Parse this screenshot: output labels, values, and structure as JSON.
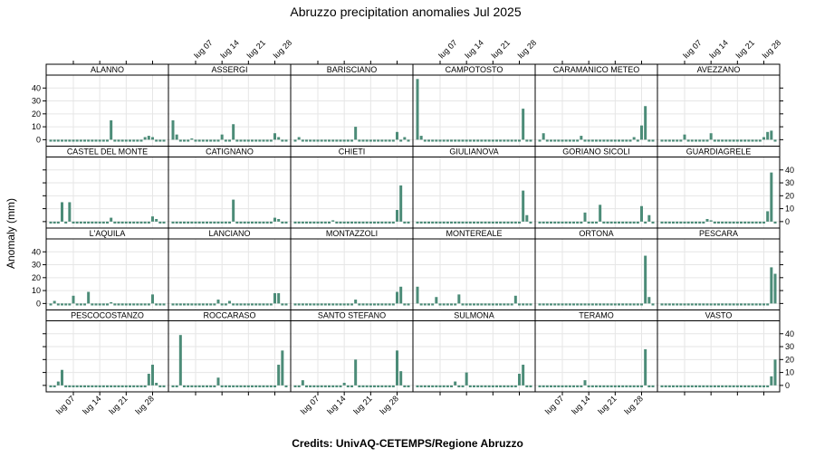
{
  "chart_data": {
    "type": "bar",
    "title": "Abruzzo precipitation anomalies Jul 2025",
    "ylabel": "Anomaly (mm)",
    "footer": "Credits: UnivAQ-CETEMPS/Regione Abruzzo",
    "ylim": [
      -5,
      50
    ],
    "yticks": [
      0,
      10,
      20,
      30,
      40
    ],
    "xlim": [
      1,
      31
    ],
    "xticks": [
      {
        "day": 7,
        "label": "lug 07"
      },
      {
        "day": 14,
        "label": "lug 14"
      },
      {
        "day": 21,
        "label": "lug 21"
      },
      {
        "day": 28,
        "label": "lug 28"
      }
    ],
    "x_unit": "day of July 2025",
    "baseline": -1.5,
    "colors": {
      "bar": "#4c8c78",
      "grid": "#e6e6e6",
      "strip_bg": "#ffffff",
      "axis": "#000000"
    },
    "grid": true,
    "layout": {
      "columns": 6,
      "rows": 4
    },
    "stations": [
      {
        "name": "ALANNO",
        "spikes": {
          "17": 15,
          "26": 2,
          "27": 3,
          "28": 2
        }
      },
      {
        "name": "ASSERGI",
        "spikes": {
          "1": 15,
          "2": 4,
          "6": 1,
          "14": 4,
          "17": 12,
          "28": 5,
          "29": 2
        }
      },
      {
        "name": "BARISCIANO",
        "spikes": {
          "2": 2,
          "17": 10,
          "28": 6,
          "30": 2
        }
      },
      {
        "name": "CAMPOTOSTO",
        "spikes": {
          "1": 47,
          "2": 3,
          "29": 24
        }
      },
      {
        "name": "CARAMANICO METEO",
        "spikes": {
          "2": 5,
          "12": 3,
          "26": 2,
          "28": 11,
          "29": 26
        }
      },
      {
        "name": "AVEZZANO",
        "spikes": {
          "7": 4,
          "14": 5,
          "28": 2,
          "29": 6,
          "30": 7
        }
      },
      {
        "name": "CASTEL DEL MONTE",
        "spikes": {
          "4": 15,
          "6": 15,
          "17": 3,
          "28": 4,
          "29": 2
        }
      },
      {
        "name": "CATIGNANO",
        "spikes": {
          "17": 17,
          "28": 3,
          "29": 2
        }
      },
      {
        "name": "CHIETI",
        "spikes": {
          "11": 1,
          "28": 9,
          "29": 28
        }
      },
      {
        "name": "GIULIANOVA",
        "spikes": {
          "29": 24,
          "30": 5
        }
      },
      {
        "name": "GORIANO SICOLI",
        "spikes": {
          "13": 7,
          "17": 13,
          "28": 12,
          "30": 5
        }
      },
      {
        "name": "GUARDIAGRELE",
        "spikes": {
          "13": 2,
          "14": 1,
          "29": 8,
          "30": 38
        }
      },
      {
        "name": "L'AQUILA",
        "spikes": {
          "2": 2,
          "7": 6,
          "11": 9,
          "17": 1,
          "28": 7
        }
      },
      {
        "name": "LANCIANO",
        "spikes": {
          "13": 3,
          "16": 2,
          "28": 8,
          "29": 8
        }
      },
      {
        "name": "MONTAZZOLI",
        "spikes": {
          "17": 3,
          "28": 9,
          "29": 13
        }
      },
      {
        "name": "MONTEREALE",
        "spikes": {
          "1": 13,
          "6": 5,
          "12": 7,
          "27": 6
        }
      },
      {
        "name": "ORTONA",
        "spikes": {
          "29": 37,
          "30": 5
        }
      },
      {
        "name": "PESCARA",
        "spikes": {
          "30": 28,
          "31": 23
        }
      },
      {
        "name": "PESCOCOSTANZO",
        "spikes": {
          "3": 3,
          "4": 12,
          "27": 9,
          "28": 16,
          "29": 2
        }
      },
      {
        "name": "ROCCARASO",
        "spikes": {
          "3": 39,
          "13": 6,
          "29": 16,
          "30": 27
        }
      },
      {
        "name": "SANTO STEFANO",
        "spikes": {
          "3": 4,
          "14": 2,
          "17": 20,
          "28": 27,
          "29": 11
        }
      },
      {
        "name": "SULMONA",
        "spikes": {
          "11": 3,
          "14": 10,
          "28": 9,
          "29": 16
        }
      },
      {
        "name": "TERAMO",
        "spikes": {
          "13": 4,
          "29": 28
        }
      },
      {
        "name": "VASTO",
        "spikes": {
          "30": 7,
          "31": 20
        }
      }
    ]
  }
}
